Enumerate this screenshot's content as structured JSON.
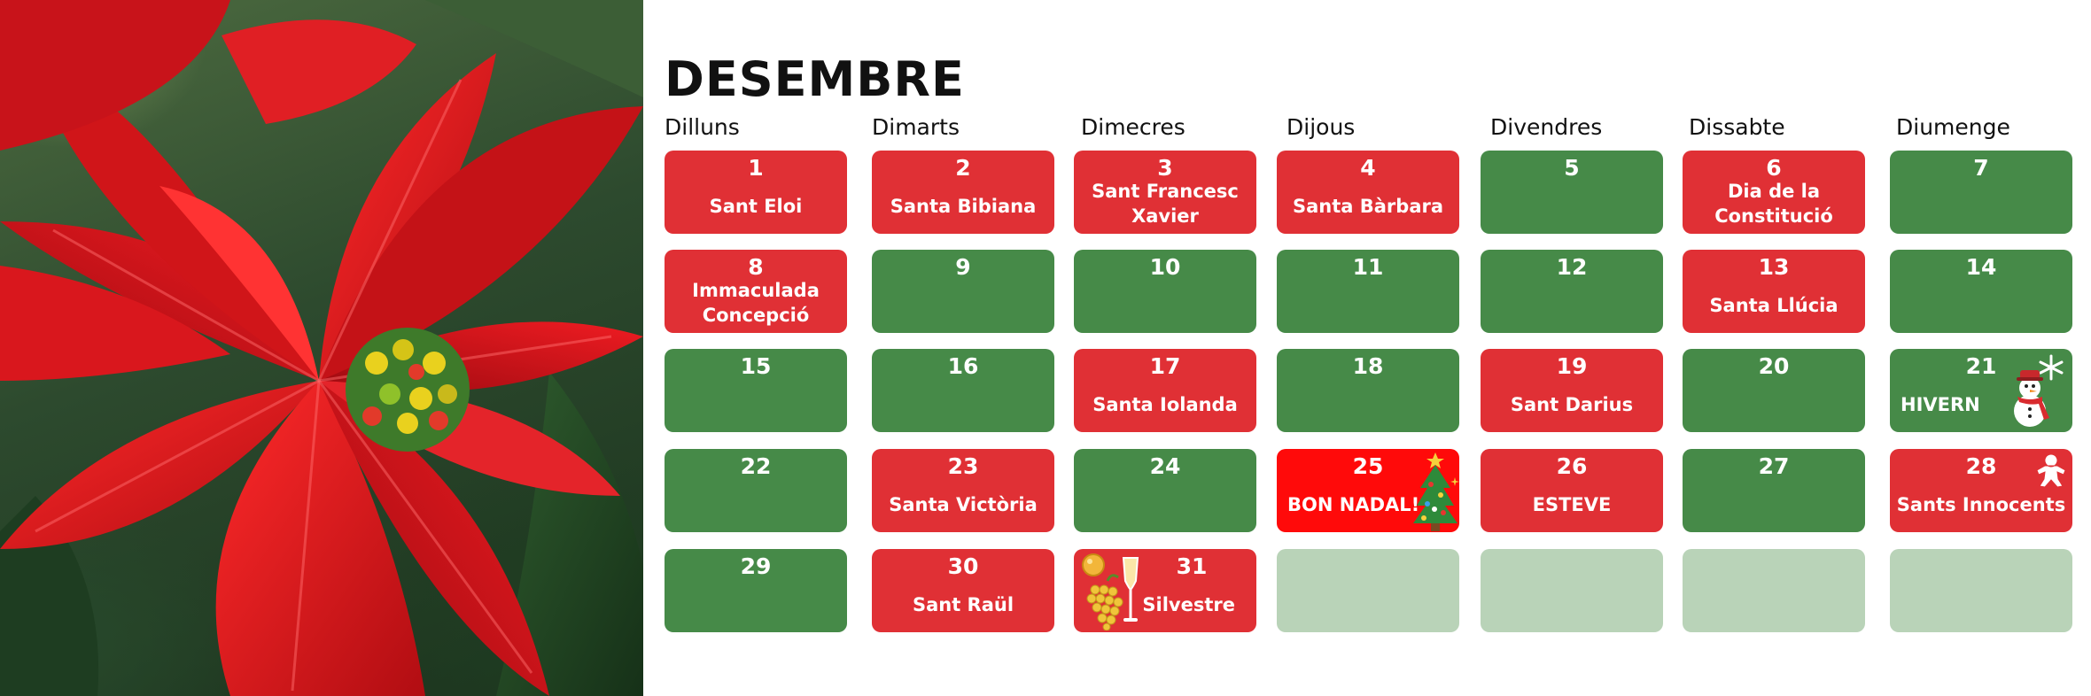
{
  "calendar": {
    "month": "DESEMBRE",
    "weekdays": [
      "Dilluns",
      "Dimarts",
      "Dimecres",
      "Dijous",
      "Divendres",
      "Dissabte",
      "Diumenge"
    ],
    "days": [
      {
        "day": "1",
        "label": "Sant Eloi"
      },
      {
        "day": "2",
        "label": "Santa Bibiana"
      },
      {
        "day": "3",
        "label": "Sant Francesc Xavier"
      },
      {
        "day": "4",
        "label": "Santa Bàrbara"
      },
      {
        "day": "5",
        "label": ""
      },
      {
        "day": "6",
        "label": "Dia de la Constitució"
      },
      {
        "day": "7",
        "label": ""
      },
      {
        "day": "8",
        "label": "Immaculada Concepció"
      },
      {
        "day": "9",
        "label": ""
      },
      {
        "day": "10",
        "label": ""
      },
      {
        "day": "11",
        "label": ""
      },
      {
        "day": "12",
        "label": ""
      },
      {
        "day": "13",
        "label": "Santa Llúcia"
      },
      {
        "day": "14",
        "label": ""
      },
      {
        "day": "15",
        "label": ""
      },
      {
        "day": "16",
        "label": ""
      },
      {
        "day": "17",
        "label": "Santa Iolanda"
      },
      {
        "day": "18",
        "label": ""
      },
      {
        "day": "19",
        "label": "Sant Darius"
      },
      {
        "day": "20",
        "label": ""
      },
      {
        "day": "21",
        "label": "HIVERN"
      },
      {
        "day": "22",
        "label": ""
      },
      {
        "day": "23",
        "label": "Santa Victòria"
      },
      {
        "day": "24",
        "label": ""
      },
      {
        "day": "25",
        "label": "BON NADAL!"
      },
      {
        "day": "26",
        "label": "ESTEVE"
      },
      {
        "day": "27",
        "label": ""
      },
      {
        "day": "28",
        "label": "Sants Innocents"
      },
      {
        "day": "29",
        "label": ""
      },
      {
        "day": "30",
        "label": "Sant Raül"
      },
      {
        "day": "31",
        "label": "Silvestre"
      }
    ]
  },
  "colors": {
    "holiday_red": "#e03035",
    "regular_green": "#468a48",
    "christmas_red": "#ff0a0a",
    "empty_green": "#b9d3b8"
  },
  "icons": {
    "photo": "poinsettia-photo",
    "day_21": "snowman-icon",
    "day_25": "christmas-tree-icon",
    "day_28": "gingerbread-man-icon",
    "day_31": "champagne-grapes-icon"
  }
}
